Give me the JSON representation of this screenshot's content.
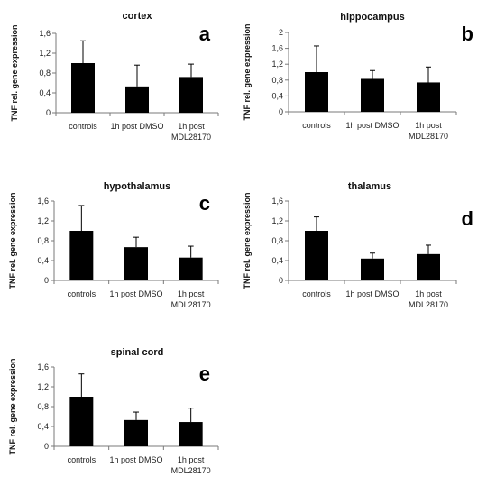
{
  "chart_data": [
    {
      "type": "bar",
      "title": "cortex",
      "panel_letter": "a",
      "ylabel": "TNF rel. gene expression",
      "categories": [
        [
          "controls"
        ],
        [
          "1h post DMSO"
        ],
        [
          "1h post",
          "MDL28170"
        ]
      ],
      "values": [
        1.0,
        0.53,
        0.72
      ],
      "errors": [
        0.45,
        0.43,
        0.26
      ],
      "ylim": [
        0,
        1.6
      ],
      "yticks": [
        "0",
        "0,4",
        "0,8",
        "1,2",
        "1,6"
      ],
      "ytick_values": [
        0,
        0.4,
        0.8,
        1.2,
        1.6
      ]
    },
    {
      "type": "bar",
      "title": "hippocampus",
      "panel_letter": "b",
      "ylabel": "TNF rel. gene expression",
      "categories": [
        [
          "controls"
        ],
        [
          "1h post DMSO"
        ],
        [
          "1h post",
          "MDL28170"
        ]
      ],
      "values": [
        1.0,
        0.83,
        0.74
      ],
      "errors": [
        0.66,
        0.21,
        0.39
      ],
      "ylim": [
        0,
        2
      ],
      "yticks": [
        "0",
        "0,4",
        "0,8",
        "1,2",
        "1,6",
        "2"
      ],
      "ytick_values": [
        0,
        0.4,
        0.8,
        1.2,
        1.6,
        2.0
      ]
    },
    {
      "type": "bar",
      "title": "hypothalamus",
      "panel_letter": "c",
      "ylabel": "TNF rel. gene expression",
      "categories": [
        [
          "controls"
        ],
        [
          "1h post DMSO"
        ],
        [
          "1h post",
          "MDL28170"
        ]
      ],
      "values": [
        1.0,
        0.67,
        0.46
      ],
      "errors": [
        0.51,
        0.2,
        0.23
      ],
      "ylim": [
        0,
        1.6
      ],
      "yticks": [
        "0",
        "0,4",
        "0,8",
        "1,2",
        "1,6"
      ],
      "ytick_values": [
        0,
        0.4,
        0.8,
        1.2,
        1.6
      ]
    },
    {
      "type": "bar",
      "title": "thalamus",
      "panel_letter": "d",
      "ylabel": "TNF rel. gene expression",
      "categories": [
        [
          "controls"
        ],
        [
          "1h post DMSO"
        ],
        [
          "1h post",
          "MDL28170"
        ]
      ],
      "values": [
        1.0,
        0.44,
        0.53
      ],
      "errors": [
        0.28,
        0.11,
        0.18
      ],
      "ylim": [
        0,
        1.6
      ],
      "yticks": [
        "0",
        "0,4",
        "0,8",
        "1,2",
        "1,6"
      ],
      "ytick_values": [
        0,
        0.4,
        0.8,
        1.2,
        1.6
      ]
    },
    {
      "type": "bar",
      "title": "spinal cord",
      "panel_letter": "e",
      "ylabel": "TNF rel. gene expression",
      "categories": [
        [
          "controls"
        ],
        [
          "1h post DMSO"
        ],
        [
          "1h post",
          "MDL28170"
        ]
      ],
      "values": [
        1.0,
        0.53,
        0.49
      ],
      "errors": [
        0.46,
        0.16,
        0.28
      ],
      "ylim": [
        0,
        1.6
      ],
      "yticks": [
        "0",
        "0,4",
        "0,8",
        "1,2",
        "1,6"
      ],
      "ytick_values": [
        0,
        0.4,
        0.8,
        1.2,
        1.6
      ]
    }
  ],
  "colors": {
    "bar": "#000000",
    "axis": "#7a7a7a",
    "text": "#222222"
  }
}
